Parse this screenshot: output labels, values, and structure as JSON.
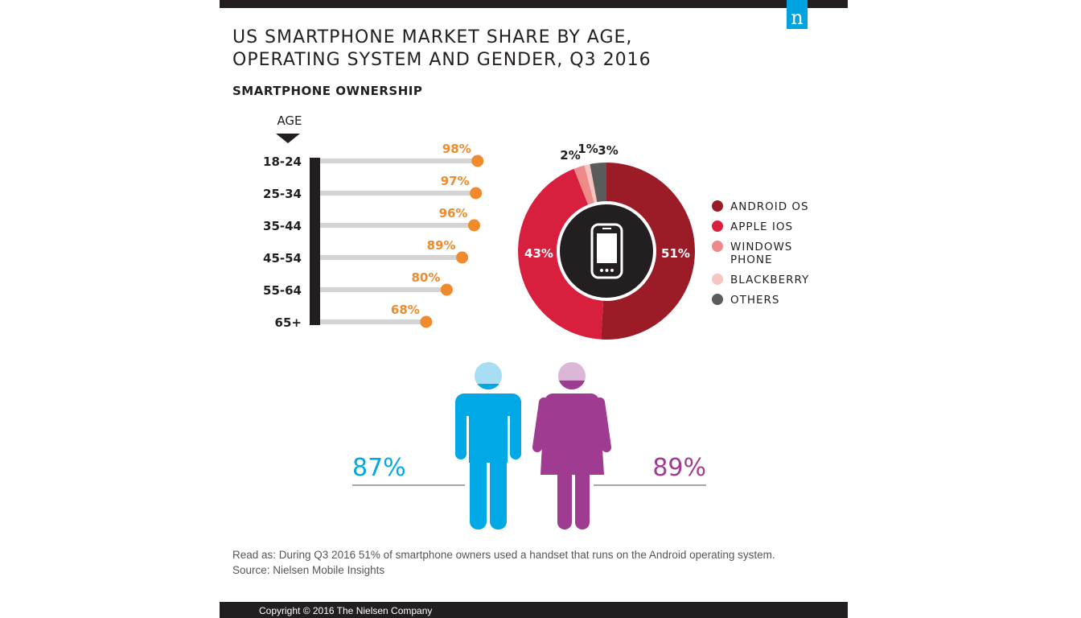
{
  "header": {
    "title_line1": "US SMARTPHONE MARKET SHARE BY AGE,",
    "title_line2": "OPERATING SYSTEM AND GENDER, Q3 2016",
    "subtitle": "SMARTPHONE OWNERSHIP",
    "logo_letter": "n",
    "logo_color": "#00a3e0"
  },
  "chart_data": [
    {
      "type": "bar",
      "orientation": "horizontal",
      "axis_label": "AGE",
      "categories": [
        "18-24",
        "25-34",
        "35-44",
        "45-54",
        "55-64",
        "65+"
      ],
      "values": [
        98,
        97,
        96,
        89,
        80,
        68
      ],
      "value_labels": [
        "98%",
        "97%",
        "96%",
        "89%",
        "80%",
        "68%"
      ],
      "value_color": "#f08a2c",
      "xlim": [
        0,
        100
      ]
    },
    {
      "type": "pie",
      "style": "donut",
      "center_icon": "smartphone-icon",
      "slices": [
        {
          "name": "ANDROID OS",
          "value": 51,
          "label": "51%",
          "color": "#9b1b26"
        },
        {
          "name": "APPLE IOS",
          "value": 43,
          "label": "43%",
          "color": "#d81f3e"
        },
        {
          "name": "WINDOWS PHONE",
          "value": 2,
          "label": "2%",
          "color": "#ee8a8a"
        },
        {
          "name": "BLACKBERRY",
          "value": 1,
          "label": "1%",
          "color": "#f6c5bf"
        },
        {
          "name": "OTHERS",
          "value": 3,
          "label": "3%",
          "color": "#5b5b5b"
        }
      ],
      "legend": {
        "placement": "right",
        "items": [
          "ANDROID OS",
          "APPLE IOS",
          "WINDOWS PHONE",
          "BLACKBERRY",
          "OTHERS"
        ]
      }
    },
    {
      "type": "pictogram",
      "series": [
        {
          "name": "male",
          "value": 87,
          "label": "87%",
          "color": "#00a8e6",
          "light_color": "#a8def3"
        },
        {
          "name": "female",
          "value": 89,
          "label": "89%",
          "color": "#a03b92",
          "light_color": "#dcb6d6"
        }
      ]
    }
  ],
  "notes": {
    "read_as": "Read as: During Q3 2016 51% of smartphone owners used a handset that runs on the Android operating system.",
    "source": "Source: Nielsen Mobile Insights"
  },
  "footer": {
    "copyright": "Copyright © 2016 The Nielsen Company"
  }
}
